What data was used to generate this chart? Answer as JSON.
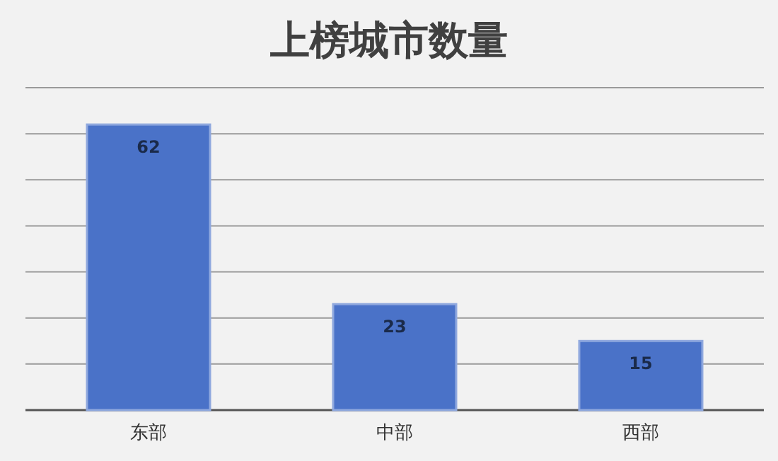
{
  "chart_data": {
    "type": "bar",
    "title": "上榜城市数量",
    "categories": [
      "东部",
      "中部",
      "西部"
    ],
    "values": [
      62,
      23,
      15
    ],
    "color": "#4a72c8",
    "ylim": [
      0,
      70
    ],
    "yticks": [
      {
        "value": 0,
        "label": null
      },
      {
        "value": 10,
        "label": null
      },
      {
        "value": 20,
        "label": null
      },
      {
        "value": 30,
        "label": null
      },
      {
        "value": 40,
        "label": null
      },
      {
        "value": 50,
        "label": null
      },
      {
        "value": 60,
        "label": null
      },
      {
        "value": 70,
        "label": null
      }
    ],
    "grid": "y",
    "tick_labels": "x",
    "data_labels": true
  }
}
